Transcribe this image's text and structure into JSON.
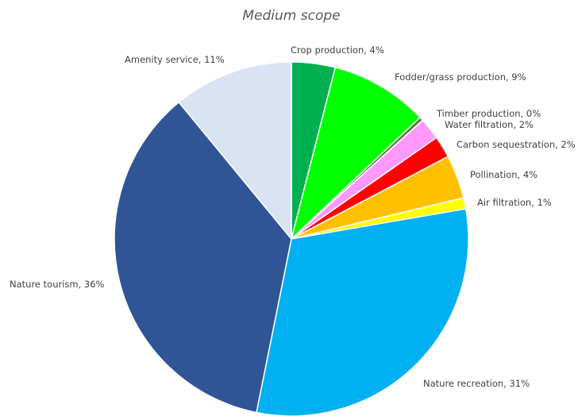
{
  "chart_data": {
    "type": "pie",
    "title": "Medium scope",
    "start_angle_deg": 0,
    "direction": "clockwise",
    "slices": [
      {
        "label": "Crop production,  4%",
        "value": 4,
        "color": "#00B050"
      },
      {
        "label": "Fodder/grass production,  9%",
        "value": 9,
        "color": "#00FF00"
      },
      {
        "label": "Timber production,  0%",
        "value": 0.35,
        "color": "#548235"
      },
      {
        "label": "Water filtration, 2%",
        "value": 2,
        "color": "#FF99FF"
      },
      {
        "label": "Carbon sequestration, 2%",
        "value": 2,
        "color": "#FF0000"
      },
      {
        "label": "Pollination, 4%",
        "value": 4,
        "color": "#FFC000"
      },
      {
        "label": "Air filtration, 1%",
        "value": 1,
        "color": "#FFFF00"
      },
      {
        "label": "Nature recreation, 31%",
        "value": 31,
        "color": "#00B0F0"
      },
      {
        "label": "Nature tourism, 36%",
        "value": 36,
        "color": "#2F5597"
      },
      {
        "label": "Amenity service, 11%",
        "value": 11,
        "color": "#DAE3F3"
      }
    ]
  }
}
